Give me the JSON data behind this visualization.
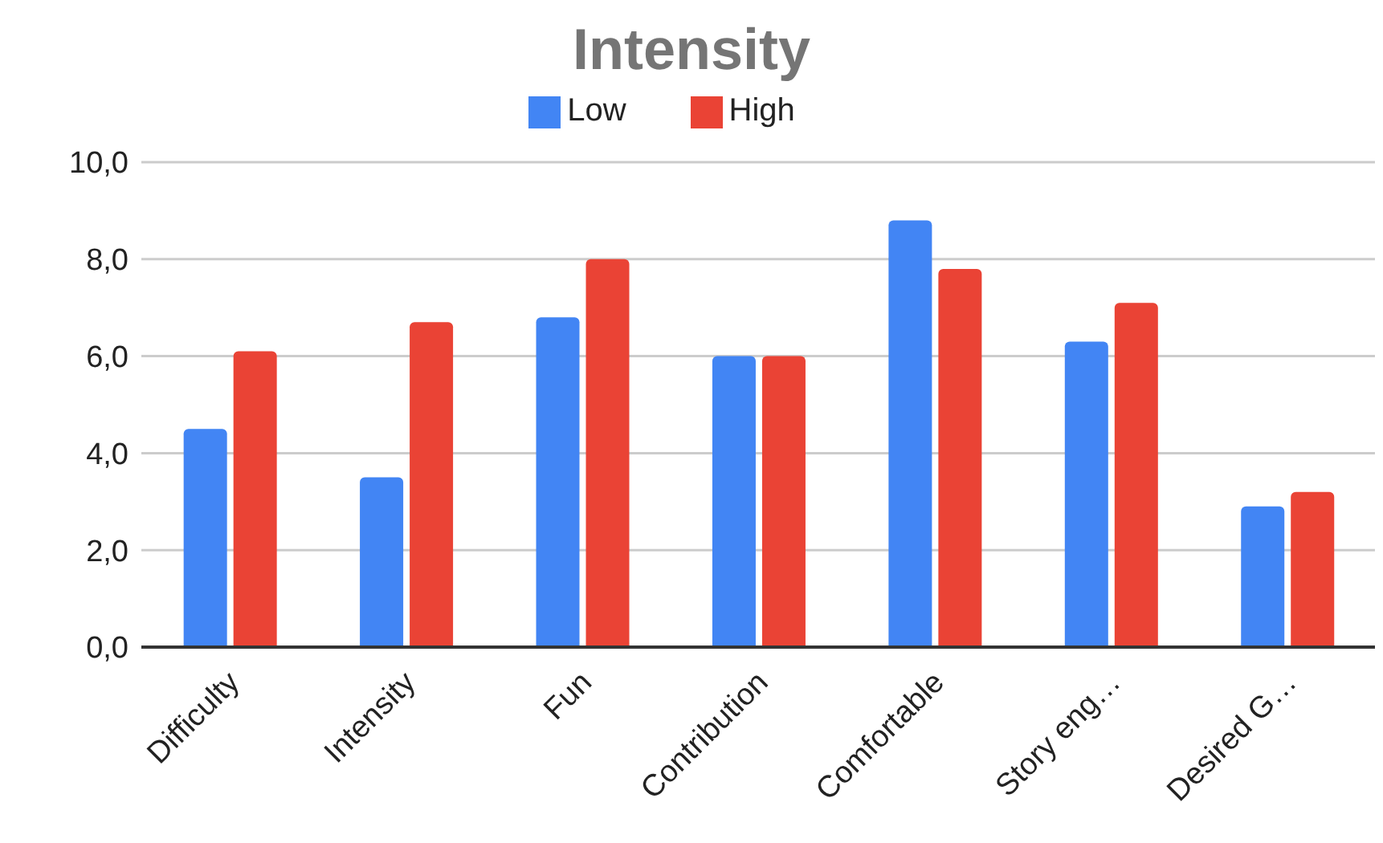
{
  "chart_data": {
    "type": "bar",
    "title": "Intensity",
    "categories": [
      "Difficulty",
      "Intensity",
      "Fun",
      "Contribution",
      "Comfortable",
      "Story eng…",
      "Desired G…"
    ],
    "series": [
      {
        "name": "Low",
        "color": "#4285f4",
        "values": [
          4.5,
          3.5,
          6.8,
          6.0,
          8.8,
          6.3,
          2.9
        ]
      },
      {
        "name": "High",
        "color": "#ea4335",
        "values": [
          6.1,
          6.7,
          8.0,
          6.0,
          7.8,
          7.1,
          3.2
        ]
      }
    ],
    "ylim": [
      0,
      10
    ],
    "yticks": [
      {
        "value": 0,
        "label": "0,0"
      },
      {
        "value": 2,
        "label": "2,0"
      },
      {
        "value": 4,
        "label": "4,0"
      },
      {
        "value": 6,
        "label": "6,0"
      },
      {
        "value": 8,
        "label": "8,0"
      },
      {
        "value": 10,
        "label": "10,0"
      }
    ],
    "grid": "y",
    "legend": "top"
  }
}
